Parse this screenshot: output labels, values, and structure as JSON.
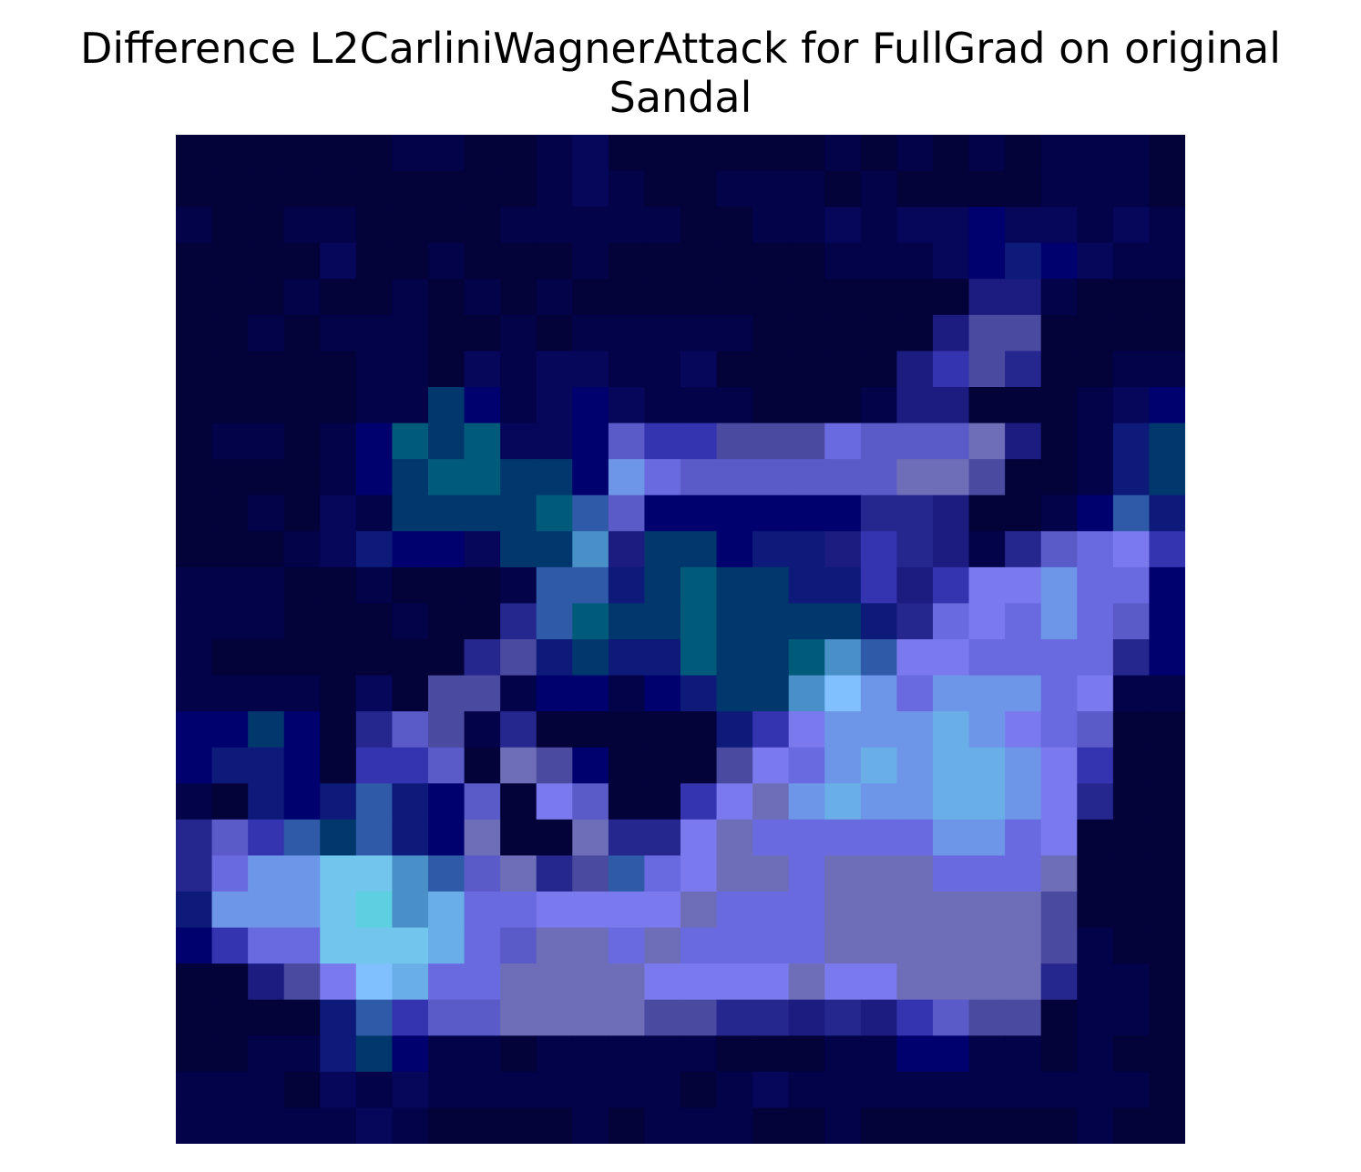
{
  "title": {
    "line1": "Difference L2CarliniWagnerAttack for FullGrad on original",
    "line2": "Sandal"
  },
  "chart_data": {
    "type": "heatmap",
    "title": "Difference L2CarliniWagnerAttack for FullGrad on original Sandal",
    "xlabel": "",
    "ylabel": "",
    "axes_visible": false,
    "grid": false,
    "rows": 28,
    "cols": 28,
    "palette": {
      "0": "#03033a",
      "1": "#030349",
      "2": "#06065a",
      "3": "#00006e",
      "4": "#0d1a7a",
      "5": "#1b1b80",
      "6": "#26268f",
      "7": "#3434b0",
      "8": "#4a4aa0",
      "9": "#5a5ac8",
      "10": "#6a6ae0",
      "11": "#6e6eb8",
      "12": "#7a7aee",
      "13": "#6e96e8",
      "14": "#6aaee8",
      "15": "#72c6ee",
      "16": "#005a7a",
      "17": "#00386e",
      "18": "#2f5aa8",
      "19": "#4a90c8",
      "20": "#80c0ff",
      "21": "#5cd0e0"
    },
    "cells": [
      [
        0,
        0,
        0,
        0,
        0,
        0,
        1,
        1,
        0,
        0,
        1,
        2,
        0,
        0,
        0,
        0,
        0,
        0,
        1,
        0,
        1,
        0,
        1,
        0,
        1,
        1,
        1,
        0
      ],
      [
        0,
        0,
        0,
        0,
        0,
        0,
        0,
        0,
        0,
        0,
        1,
        2,
        1,
        0,
        0,
        1,
        1,
        1,
        0,
        1,
        0,
        0,
        0,
        0,
        1,
        1,
        1,
        0
      ],
      [
        1,
        0,
        0,
        1,
        1,
        0,
        0,
        0,
        0,
        1,
        1,
        1,
        1,
        1,
        0,
        0,
        1,
        1,
        2,
        1,
        2,
        2,
        3,
        2,
        2,
        1,
        2,
        1
      ],
      [
        0,
        0,
        0,
        0,
        2,
        0,
        0,
        1,
        0,
        0,
        0,
        1,
        0,
        0,
        0,
        0,
        0,
        0,
        1,
        1,
        1,
        2,
        3,
        4,
        3,
        2,
        1,
        1
      ],
      [
        0,
        0,
        0,
        1,
        0,
        0,
        1,
        0,
        1,
        0,
        1,
        0,
        0,
        0,
        0,
        0,
        0,
        0,
        0,
        0,
        0,
        0,
        5,
        5,
        1,
        0,
        0,
        0
      ],
      [
        0,
        0,
        1,
        0,
        1,
        1,
        1,
        0,
        0,
        1,
        0,
        1,
        1,
        1,
        1,
        1,
        0,
        0,
        0,
        0,
        0,
        5,
        8,
        8,
        0,
        0,
        0,
        0
      ],
      [
        0,
        0,
        0,
        0,
        0,
        1,
        1,
        0,
        2,
        1,
        2,
        2,
        1,
        1,
        2,
        0,
        0,
        0,
        0,
        0,
        5,
        7,
        8,
        6,
        0,
        0,
        1,
        1
      ],
      [
        0,
        0,
        0,
        0,
        0,
        1,
        1,
        17,
        3,
        1,
        2,
        3,
        2,
        1,
        1,
        1,
        0,
        0,
        0,
        1,
        5,
        5,
        0,
        0,
        0,
        1,
        2,
        3
      ],
      [
        0,
        1,
        1,
        0,
        1,
        3,
        16,
        17,
        16,
        2,
        2,
        3,
        9,
        7,
        7,
        8,
        8,
        8,
        10,
        9,
        9,
        9,
        11,
        5,
        0,
        1,
        4,
        17
      ],
      [
        0,
        0,
        0,
        0,
        1,
        3,
        17,
        16,
        16,
        17,
        17,
        3,
        13,
        10,
        9,
        9,
        9,
        9,
        9,
        9,
        11,
        11,
        8,
        0,
        0,
        1,
        4,
        17
      ],
      [
        0,
        0,
        1,
        0,
        2,
        1,
        17,
        17,
        17,
        17,
        16,
        18,
        9,
        3,
        3,
        3,
        3,
        3,
        3,
        6,
        6,
        5,
        0,
        0,
        1,
        3,
        18,
        4
      ],
      [
        0,
        0,
        0,
        1,
        2,
        4,
        3,
        3,
        2,
        17,
        17,
        19,
        5,
        17,
        17,
        3,
        4,
        4,
        5,
        7,
        6,
        5,
        1,
        6,
        9,
        10,
        12,
        7
      ],
      [
        1,
        1,
        1,
        0,
        0,
        1,
        0,
        0,
        0,
        1,
        18,
        18,
        4,
        17,
        16,
        17,
        17,
        4,
        4,
        7,
        5,
        7,
        12,
        12,
        13,
        10,
        10,
        3
      ],
      [
        1,
        1,
        1,
        0,
        0,
        0,
        1,
        0,
        0,
        6,
        18,
        16,
        17,
        17,
        16,
        17,
        17,
        17,
        17,
        4,
        6,
        10,
        12,
        10,
        13,
        10,
        9,
        3
      ],
      [
        1,
        0,
        0,
        0,
        0,
        0,
        0,
        0,
        6,
        8,
        4,
        17,
        4,
        4,
        16,
        17,
        17,
        16,
        19,
        18,
        12,
        12,
        10,
        10,
        10,
        10,
        6,
        3
      ],
      [
        1,
        1,
        1,
        1,
        0,
        2,
        0,
        8,
        8,
        1,
        3,
        3,
        1,
        3,
        4,
        17,
        17,
        19,
        20,
        13,
        10,
        13,
        13,
        13,
        10,
        12,
        1,
        1
      ],
      [
        3,
        3,
        17,
        3,
        0,
        6,
        9,
        8,
        1,
        6,
        0,
        0,
        0,
        0,
        0,
        4,
        7,
        12,
        13,
        13,
        13,
        14,
        13,
        12,
        10,
        9,
        0,
        0
      ],
      [
        3,
        4,
        4,
        3,
        0,
        7,
        7,
        9,
        0,
        11,
        8,
        3,
        0,
        0,
        0,
        8,
        12,
        10,
        13,
        14,
        13,
        14,
        14,
        13,
        12,
        7,
        0,
        0
      ],
      [
        1,
        0,
        4,
        3,
        4,
        18,
        4,
        3,
        9,
        0,
        12,
        9,
        0,
        0,
        7,
        12,
        11,
        13,
        14,
        13,
        13,
        14,
        14,
        13,
        12,
        6,
        0,
        0
      ],
      [
        6,
        9,
        7,
        18,
        17,
        18,
        4,
        3,
        11,
        0,
        0,
        11,
        6,
        6,
        12,
        11,
        10,
        10,
        10,
        10,
        10,
        13,
        13,
        10,
        12,
        0,
        0,
        0
      ],
      [
        6,
        10,
        13,
        13,
        15,
        15,
        19,
        18,
        9,
        11,
        6,
        8,
        18,
        10,
        12,
        11,
        11,
        10,
        11,
        11,
        11,
        10,
        10,
        10,
        11,
        0,
        0,
        0
      ],
      [
        4,
        13,
        13,
        13,
        15,
        21,
        19,
        14,
        10,
        10,
        12,
        12,
        12,
        12,
        11,
        10,
        10,
        10,
        11,
        11,
        11,
        11,
        11,
        11,
        8,
        0,
        0,
        0
      ],
      [
        3,
        7,
        10,
        10,
        15,
        15,
        15,
        14,
        10,
        9,
        11,
        11,
        10,
        11,
        10,
        10,
        10,
        10,
        11,
        11,
        11,
        11,
        11,
        11,
        8,
        1,
        0,
        0
      ],
      [
        0,
        0,
        5,
        8,
        12,
        20,
        14,
        10,
        10,
        11,
        11,
        11,
        11,
        12,
        12,
        12,
        12,
        11,
        12,
        12,
        11,
        11,
        11,
        11,
        6,
        1,
        1,
        0
      ],
      [
        0,
        0,
        0,
        0,
        4,
        18,
        7,
        9,
        9,
        11,
        11,
        11,
        11,
        8,
        8,
        6,
        6,
        5,
        6,
        5,
        7,
        9,
        8,
        8,
        0,
        1,
        1,
        0
      ],
      [
        0,
        0,
        1,
        1,
        4,
        17,
        3,
        1,
        1,
        0,
        1,
        1,
        1,
        1,
        1,
        0,
        0,
        0,
        1,
        1,
        3,
        3,
        1,
        1,
        0,
        1,
        0,
        0
      ],
      [
        1,
        1,
        1,
        0,
        2,
        1,
        2,
        1,
        1,
        1,
        1,
        1,
        1,
        1,
        0,
        1,
        2,
        1,
        1,
        1,
        1,
        1,
        1,
        1,
        1,
        1,
        1,
        0
      ],
      [
        1,
        1,
        1,
        1,
        1,
        2,
        1,
        0,
        0,
        0,
        0,
        1,
        0,
        1,
        1,
        1,
        0,
        0,
        1,
        0,
        0,
        0,
        0,
        0,
        0,
        1,
        0,
        0
      ]
    ]
  }
}
